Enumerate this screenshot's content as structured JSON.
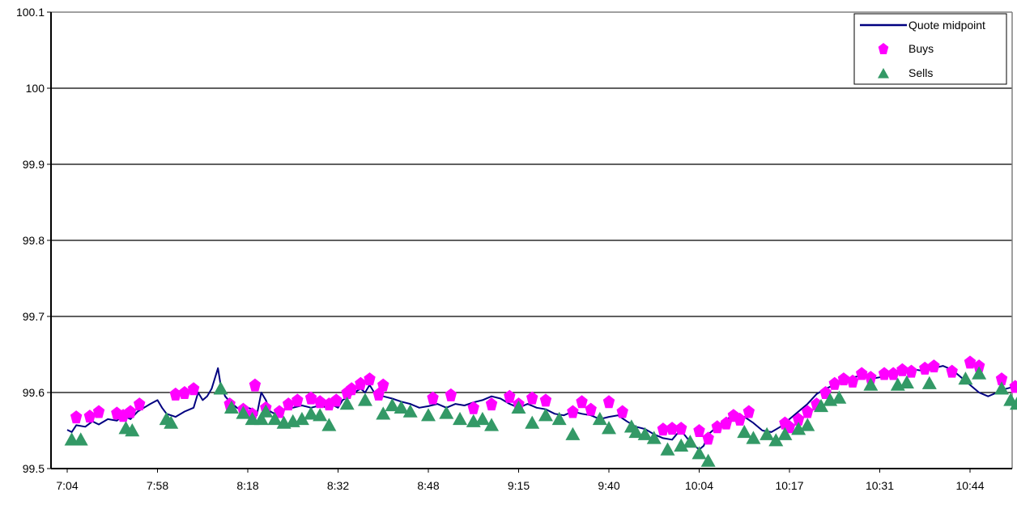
{
  "chart_data": {
    "type": "line",
    "title": "",
    "xlabel": "",
    "ylabel": "",
    "ylim": [
      99.5,
      100.1
    ],
    "y_ticks": [
      "99.5",
      "99.6",
      "99.7",
      "99.8",
      "99.9",
      "100",
      "100.1"
    ],
    "y_tick_values": [
      99.5,
      99.6,
      99.7,
      99.8,
      99.9,
      100.0,
      100.1
    ],
    "x_tick_labels": [
      "7:04",
      "7:58",
      "8:18",
      "8:32",
      "8:48",
      "9:15",
      "9:40",
      "10:04",
      "10:17",
      "10:31",
      "10:44"
    ],
    "grid": "horizontal",
    "legend_position": "top-right",
    "colors": {
      "midpoint": "#000080",
      "buys": "#ff00ff",
      "sells": "#339966"
    },
    "series": [
      {
        "name": "Quote midpoint",
        "kind": "line",
        "points": [
          [
            0.0,
            99.551
          ],
          [
            0.05,
            99.548
          ],
          [
            0.1,
            99.557
          ],
          [
            0.2,
            99.555
          ],
          [
            0.28,
            99.562
          ],
          [
            0.35,
            99.558
          ],
          [
            0.45,
            99.565
          ],
          [
            0.55,
            99.563
          ],
          [
            0.62,
            99.57
          ],
          [
            0.7,
            99.565
          ],
          [
            0.78,
            99.575
          ],
          [
            0.85,
            99.58
          ],
          [
            0.92,
            99.585
          ],
          [
            1.0,
            99.59
          ],
          [
            1.05,
            99.58
          ],
          [
            1.1,
            99.572
          ],
          [
            1.2,
            99.568
          ],
          [
            1.3,
            99.575
          ],
          [
            1.4,
            99.58
          ],
          [
            1.45,
            99.6
          ],
          [
            1.5,
            99.59
          ],
          [
            1.55,
            99.595
          ],
          [
            1.6,
            99.605
          ],
          [
            1.67,
            99.632
          ],
          [
            1.7,
            99.61
          ],
          [
            1.75,
            99.595
          ],
          [
            1.8,
            99.588
          ],
          [
            1.88,
            99.58
          ],
          [
            1.95,
            99.575
          ],
          [
            2.0,
            99.58
          ],
          [
            2.05,
            99.578
          ],
          [
            2.1,
            99.57
          ],
          [
            2.15,
            99.6
          ],
          [
            2.2,
            99.59
          ],
          [
            2.25,
            99.575
          ],
          [
            2.3,
            99.572
          ],
          [
            2.4,
            99.578
          ],
          [
            2.5,
            99.58
          ],
          [
            2.6,
            99.583
          ],
          [
            2.7,
            99.58
          ],
          [
            2.8,
            99.583
          ],
          [
            2.88,
            99.58
          ],
          [
            2.95,
            99.583
          ],
          [
            3.0,
            99.58
          ],
          [
            3.05,
            99.59
          ],
          [
            3.12,
            99.595
          ],
          [
            3.18,
            99.6
          ],
          [
            3.25,
            99.605
          ],
          [
            3.3,
            99.6
          ],
          [
            3.35,
            99.61
          ],
          [
            3.4,
            99.6
          ],
          [
            3.5,
            99.595
          ],
          [
            3.6,
            99.592
          ],
          [
            3.7,
            99.588
          ],
          [
            3.8,
            99.585
          ],
          [
            3.9,
            99.58
          ],
          [
            4.0,
            99.582
          ],
          [
            4.1,
            99.585
          ],
          [
            4.2,
            99.58
          ],
          [
            4.3,
            99.585
          ],
          [
            4.4,
            99.583
          ],
          [
            4.5,
            99.587
          ],
          [
            4.6,
            99.59
          ],
          [
            4.7,
            99.595
          ],
          [
            4.8,
            99.592
          ],
          [
            4.9,
            99.585
          ],
          [
            5.0,
            99.58
          ],
          [
            5.1,
            99.585
          ],
          [
            5.2,
            99.58
          ],
          [
            5.3,
            99.578
          ],
          [
            5.4,
            99.572
          ],
          [
            5.5,
            99.57
          ],
          [
            5.6,
            99.575
          ],
          [
            5.7,
            99.572
          ],
          [
            5.8,
            99.57
          ],
          [
            5.9,
            99.565
          ],
          [
            6.0,
            99.568
          ],
          [
            6.1,
            99.57
          ],
          [
            6.2,
            99.562
          ],
          [
            6.3,
            99.555
          ],
          [
            6.4,
            99.552
          ],
          [
            6.5,
            99.545
          ],
          [
            6.6,
            99.54
          ],
          [
            6.7,
            99.538
          ],
          [
            6.75,
            99.545
          ],
          [
            6.8,
            99.55
          ],
          [
            6.9,
            99.535
          ],
          [
            7.0,
            99.525
          ],
          [
            7.05,
            99.53
          ],
          [
            7.1,
            99.545
          ],
          [
            7.2,
            99.555
          ],
          [
            7.3,
            99.565
          ],
          [
            7.4,
            99.57
          ],
          [
            7.5,
            99.568
          ],
          [
            7.6,
            99.56
          ],
          [
            7.7,
            99.55
          ],
          [
            7.8,
            99.548
          ],
          [
            7.9,
            99.555
          ],
          [
            8.0,
            99.565
          ],
          [
            8.1,
            99.575
          ],
          [
            8.2,
            99.585
          ],
          [
            8.3,
            99.598
          ],
          [
            8.4,
            99.605
          ],
          [
            8.5,
            99.61
          ],
          [
            8.6,
            99.615
          ],
          [
            8.7,
            99.62
          ],
          [
            8.8,
            99.622
          ],
          [
            8.9,
            99.618
          ],
          [
            9.0,
            99.62
          ],
          [
            9.1,
            99.622
          ],
          [
            9.2,
            99.625
          ],
          [
            9.3,
            99.628
          ],
          [
            9.4,
            99.63
          ],
          [
            9.5,
            99.628
          ],
          [
            9.6,
            99.632
          ],
          [
            9.7,
            99.635
          ],
          [
            9.8,
            99.63
          ],
          [
            9.9,
            99.62
          ],
          [
            10.0,
            99.61
          ],
          [
            10.1,
            99.6
          ],
          [
            10.2,
            99.595
          ],
          [
            10.3,
            99.6
          ],
          [
            10.4,
            99.605
          ],
          [
            10.5,
            99.608
          ],
          [
            10.6,
            99.61
          ],
          [
            10.65,
            99.612
          ]
        ]
      },
      {
        "name": "Buys",
        "kind": "scatter",
        "marker": "diamond",
        "points": [
          [
            0.1,
            99.568
          ],
          [
            0.25,
            99.569
          ],
          [
            0.35,
            99.575
          ],
          [
            0.55,
            99.573
          ],
          [
            0.62,
            99.57
          ],
          [
            0.7,
            99.575
          ],
          [
            0.8,
            99.585
          ],
          [
            1.2,
            99.598
          ],
          [
            1.3,
            99.6
          ],
          [
            1.4,
            99.605
          ],
          [
            1.8,
            99.585
          ],
          [
            1.95,
            99.578
          ],
          [
            2.05,
            99.572
          ],
          [
            2.08,
            99.61
          ],
          [
            2.2,
            99.58
          ],
          [
            2.35,
            99.575
          ],
          [
            2.45,
            99.585
          ],
          [
            2.55,
            99.59
          ],
          [
            2.7,
            99.593
          ],
          [
            2.8,
            99.588
          ],
          [
            2.9,
            99.585
          ],
          [
            2.98,
            99.59
          ],
          [
            3.1,
            99.6
          ],
          [
            3.15,
            99.605
          ],
          [
            3.25,
            99.612
          ],
          [
            3.35,
            99.618
          ],
          [
            3.45,
            99.598
          ],
          [
            3.5,
            99.61
          ],
          [
            4.05,
            99.593
          ],
          [
            4.25,
            99.597
          ],
          [
            4.5,
            99.58
          ],
          [
            4.7,
            99.585
          ],
          [
            4.9,
            99.595
          ],
          [
            5.0,
            99.585
          ],
          [
            5.15,
            99.593
          ],
          [
            5.3,
            99.59
          ],
          [
            5.6,
            99.575
          ],
          [
            5.7,
            99.588
          ],
          [
            5.8,
            99.578
          ],
          [
            6.0,
            99.588
          ],
          [
            6.15,
            99.575
          ],
          [
            6.6,
            99.552
          ],
          [
            6.7,
            99.553
          ],
          [
            6.8,
            99.553
          ],
          [
            7.0,
            99.55
          ],
          [
            7.1,
            99.54
          ],
          [
            7.2,
            99.555
          ],
          [
            7.3,
            99.56
          ],
          [
            7.38,
            99.57
          ],
          [
            7.45,
            99.565
          ],
          [
            7.55,
            99.575
          ],
          [
            7.95,
            99.56
          ],
          [
            8.0,
            99.555
          ],
          [
            8.1,
            99.565
          ],
          [
            8.2,
            99.575
          ],
          [
            8.3,
            99.585
          ],
          [
            8.4,
            99.6
          ],
          [
            8.5,
            99.612
          ],
          [
            8.6,
            99.618
          ],
          [
            8.7,
            99.615
          ],
          [
            8.8,
            99.625
          ],
          [
            8.9,
            99.62
          ],
          [
            9.05,
            99.625
          ],
          [
            9.15,
            99.625
          ],
          [
            9.25,
            99.63
          ],
          [
            9.35,
            99.628
          ],
          [
            9.5,
            99.632
          ],
          [
            9.6,
            99.635
          ],
          [
            9.8,
            99.628
          ],
          [
            10.0,
            99.64
          ],
          [
            10.1,
            99.635
          ],
          [
            10.35,
            99.618
          ],
          [
            10.5,
            99.608
          ],
          [
            10.65,
            99.61
          ],
          [
            10.75,
            99.612
          ],
          [
            10.85,
            99.618
          ],
          [
            10.95,
            99.62
          ]
        ]
      },
      {
        "name": "Sells",
        "kind": "scatter",
        "marker": "triangle",
        "points": [
          [
            0.05,
            99.538
          ],
          [
            0.15,
            99.538
          ],
          [
            0.65,
            99.553
          ],
          [
            0.72,
            99.55
          ],
          [
            1.1,
            99.565
          ],
          [
            1.15,
            99.56
          ],
          [
            1.7,
            99.605
          ],
          [
            1.82,
            99.58
          ],
          [
            1.95,
            99.573
          ],
          [
            2.05,
            99.565
          ],
          [
            2.15,
            99.565
          ],
          [
            2.2,
            99.575
          ],
          [
            2.3,
            99.565
          ],
          [
            2.4,
            99.56
          ],
          [
            2.5,
            99.562
          ],
          [
            2.6,
            99.565
          ],
          [
            2.7,
            99.572
          ],
          [
            2.8,
            99.57
          ],
          [
            2.9,
            99.557
          ],
          [
            3.1,
            99.585
          ],
          [
            3.3,
            99.59
          ],
          [
            3.5,
            99.572
          ],
          [
            3.6,
            99.583
          ],
          [
            3.7,
            99.58
          ],
          [
            3.8,
            99.575
          ],
          [
            4.0,
            99.57
          ],
          [
            4.2,
            99.573
          ],
          [
            4.35,
            99.565
          ],
          [
            4.5,
            99.562
          ],
          [
            4.6,
            99.565
          ],
          [
            4.7,
            99.557
          ],
          [
            5.0,
            99.58
          ],
          [
            5.15,
            99.56
          ],
          [
            5.3,
            99.57
          ],
          [
            5.45,
            99.565
          ],
          [
            5.6,
            99.545
          ],
          [
            5.9,
            99.565
          ],
          [
            6.0,
            99.553
          ],
          [
            6.25,
            99.555
          ],
          [
            6.3,
            99.548
          ],
          [
            6.4,
            99.545
          ],
          [
            6.5,
            99.54
          ],
          [
            6.65,
            99.525
          ],
          [
            6.8,
            99.53
          ],
          [
            6.9,
            99.535
          ],
          [
            7.0,
            99.52
          ],
          [
            7.1,
            99.51
          ],
          [
            7.5,
            99.548
          ],
          [
            7.6,
            99.54
          ],
          [
            7.75,
            99.545
          ],
          [
            7.85,
            99.537
          ],
          [
            7.95,
            99.545
          ],
          [
            8.1,
            99.552
          ],
          [
            8.2,
            99.557
          ],
          [
            8.35,
            99.582
          ],
          [
            8.45,
            99.59
          ],
          [
            8.55,
            99.593
          ],
          [
            8.9,
            99.61
          ],
          [
            9.2,
            99.61
          ],
          [
            9.3,
            99.613
          ],
          [
            9.55,
            99.612
          ],
          [
            9.95,
            99.618
          ],
          [
            10.1,
            99.625
          ],
          [
            10.35,
            99.605
          ],
          [
            10.45,
            99.59
          ],
          [
            10.52,
            99.585
          ],
          [
            10.6,
            99.58
          ],
          [
            10.75,
            99.597
          ],
          [
            11.0,
            99.595
          ]
        ]
      }
    ]
  }
}
